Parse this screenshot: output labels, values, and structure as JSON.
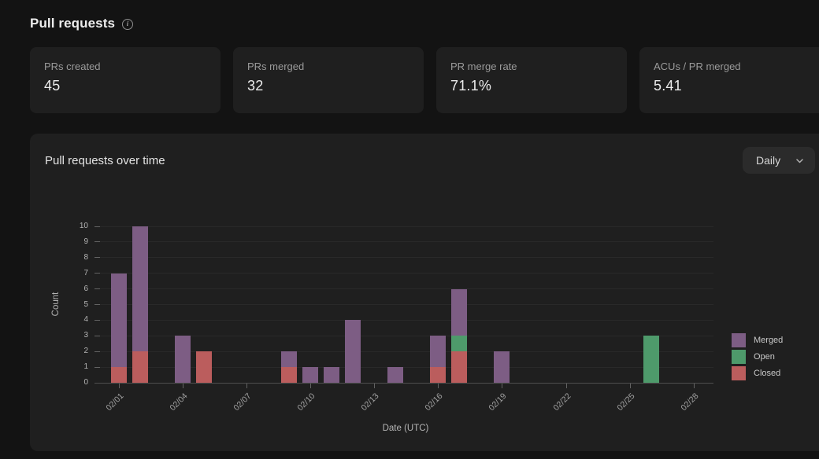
{
  "header": {
    "title": "Pull requests",
    "info_icon_glyph": "i"
  },
  "stats": [
    {
      "label": "PRs created",
      "value": "45"
    },
    {
      "label": "PRs merged",
      "value": "32"
    },
    {
      "label": "PR merge rate",
      "value": "71.1%"
    },
    {
      "label": "ACUs / PR merged",
      "value": "5.41"
    }
  ],
  "chart_card": {
    "title": "Pull requests over time",
    "interval_selector": {
      "value": "Daily"
    }
  },
  "chart_data": {
    "type": "bar",
    "stacked": true,
    "title": "Pull requests over time",
    "xlabel": "Date (UTC)",
    "ylabel": "Count",
    "ylim": [
      0,
      10
    ],
    "y_ticks": [
      0,
      1,
      2,
      3,
      4,
      5,
      6,
      7,
      8,
      9,
      10
    ],
    "grid": true,
    "legend_position": "right",
    "categories": [
      "02/01",
      "02/02",
      "02/03",
      "02/04",
      "02/05",
      "02/06",
      "02/07",
      "02/08",
      "02/09",
      "02/10",
      "02/11",
      "02/12",
      "02/13",
      "02/14",
      "02/15",
      "02/16",
      "02/17",
      "02/18",
      "02/19",
      "02/20",
      "02/21",
      "02/22",
      "02/23",
      "02/24",
      "02/25",
      "02/26",
      "02/27",
      "02/28"
    ],
    "x_tick_labels": [
      "02/01",
      "02/04",
      "02/07",
      "02/10",
      "02/13",
      "02/16",
      "02/19",
      "02/22",
      "02/25",
      "02/28"
    ],
    "stack_order_bottom_to_top": [
      "Closed",
      "Open",
      "Merged"
    ],
    "series": [
      {
        "name": "Merged",
        "color": "#7d5d84",
        "values": [
          6,
          8,
          0,
          3,
          0,
          0,
          0,
          0,
          1,
          1,
          1,
          4,
          0,
          1,
          0,
          2,
          3,
          0,
          2,
          0,
          0,
          0,
          0,
          0,
          0,
          0,
          0,
          0
        ]
      },
      {
        "name": "Open",
        "color": "#4e9a6b",
        "values": [
          0,
          0,
          0,
          0,
          0,
          0,
          0,
          0,
          0,
          0,
          0,
          0,
          0,
          0,
          0,
          0,
          1,
          0,
          0,
          0,
          0,
          0,
          0,
          0,
          0,
          3,
          0,
          0
        ]
      },
      {
        "name": "Closed",
        "color": "#bb5d5d",
        "values": [
          1,
          2,
          0,
          0,
          2,
          0,
          0,
          0,
          1,
          0,
          0,
          0,
          0,
          0,
          0,
          1,
          2,
          0,
          0,
          0,
          0,
          0,
          0,
          0,
          0,
          0,
          0,
          0
        ]
      }
    ]
  }
}
